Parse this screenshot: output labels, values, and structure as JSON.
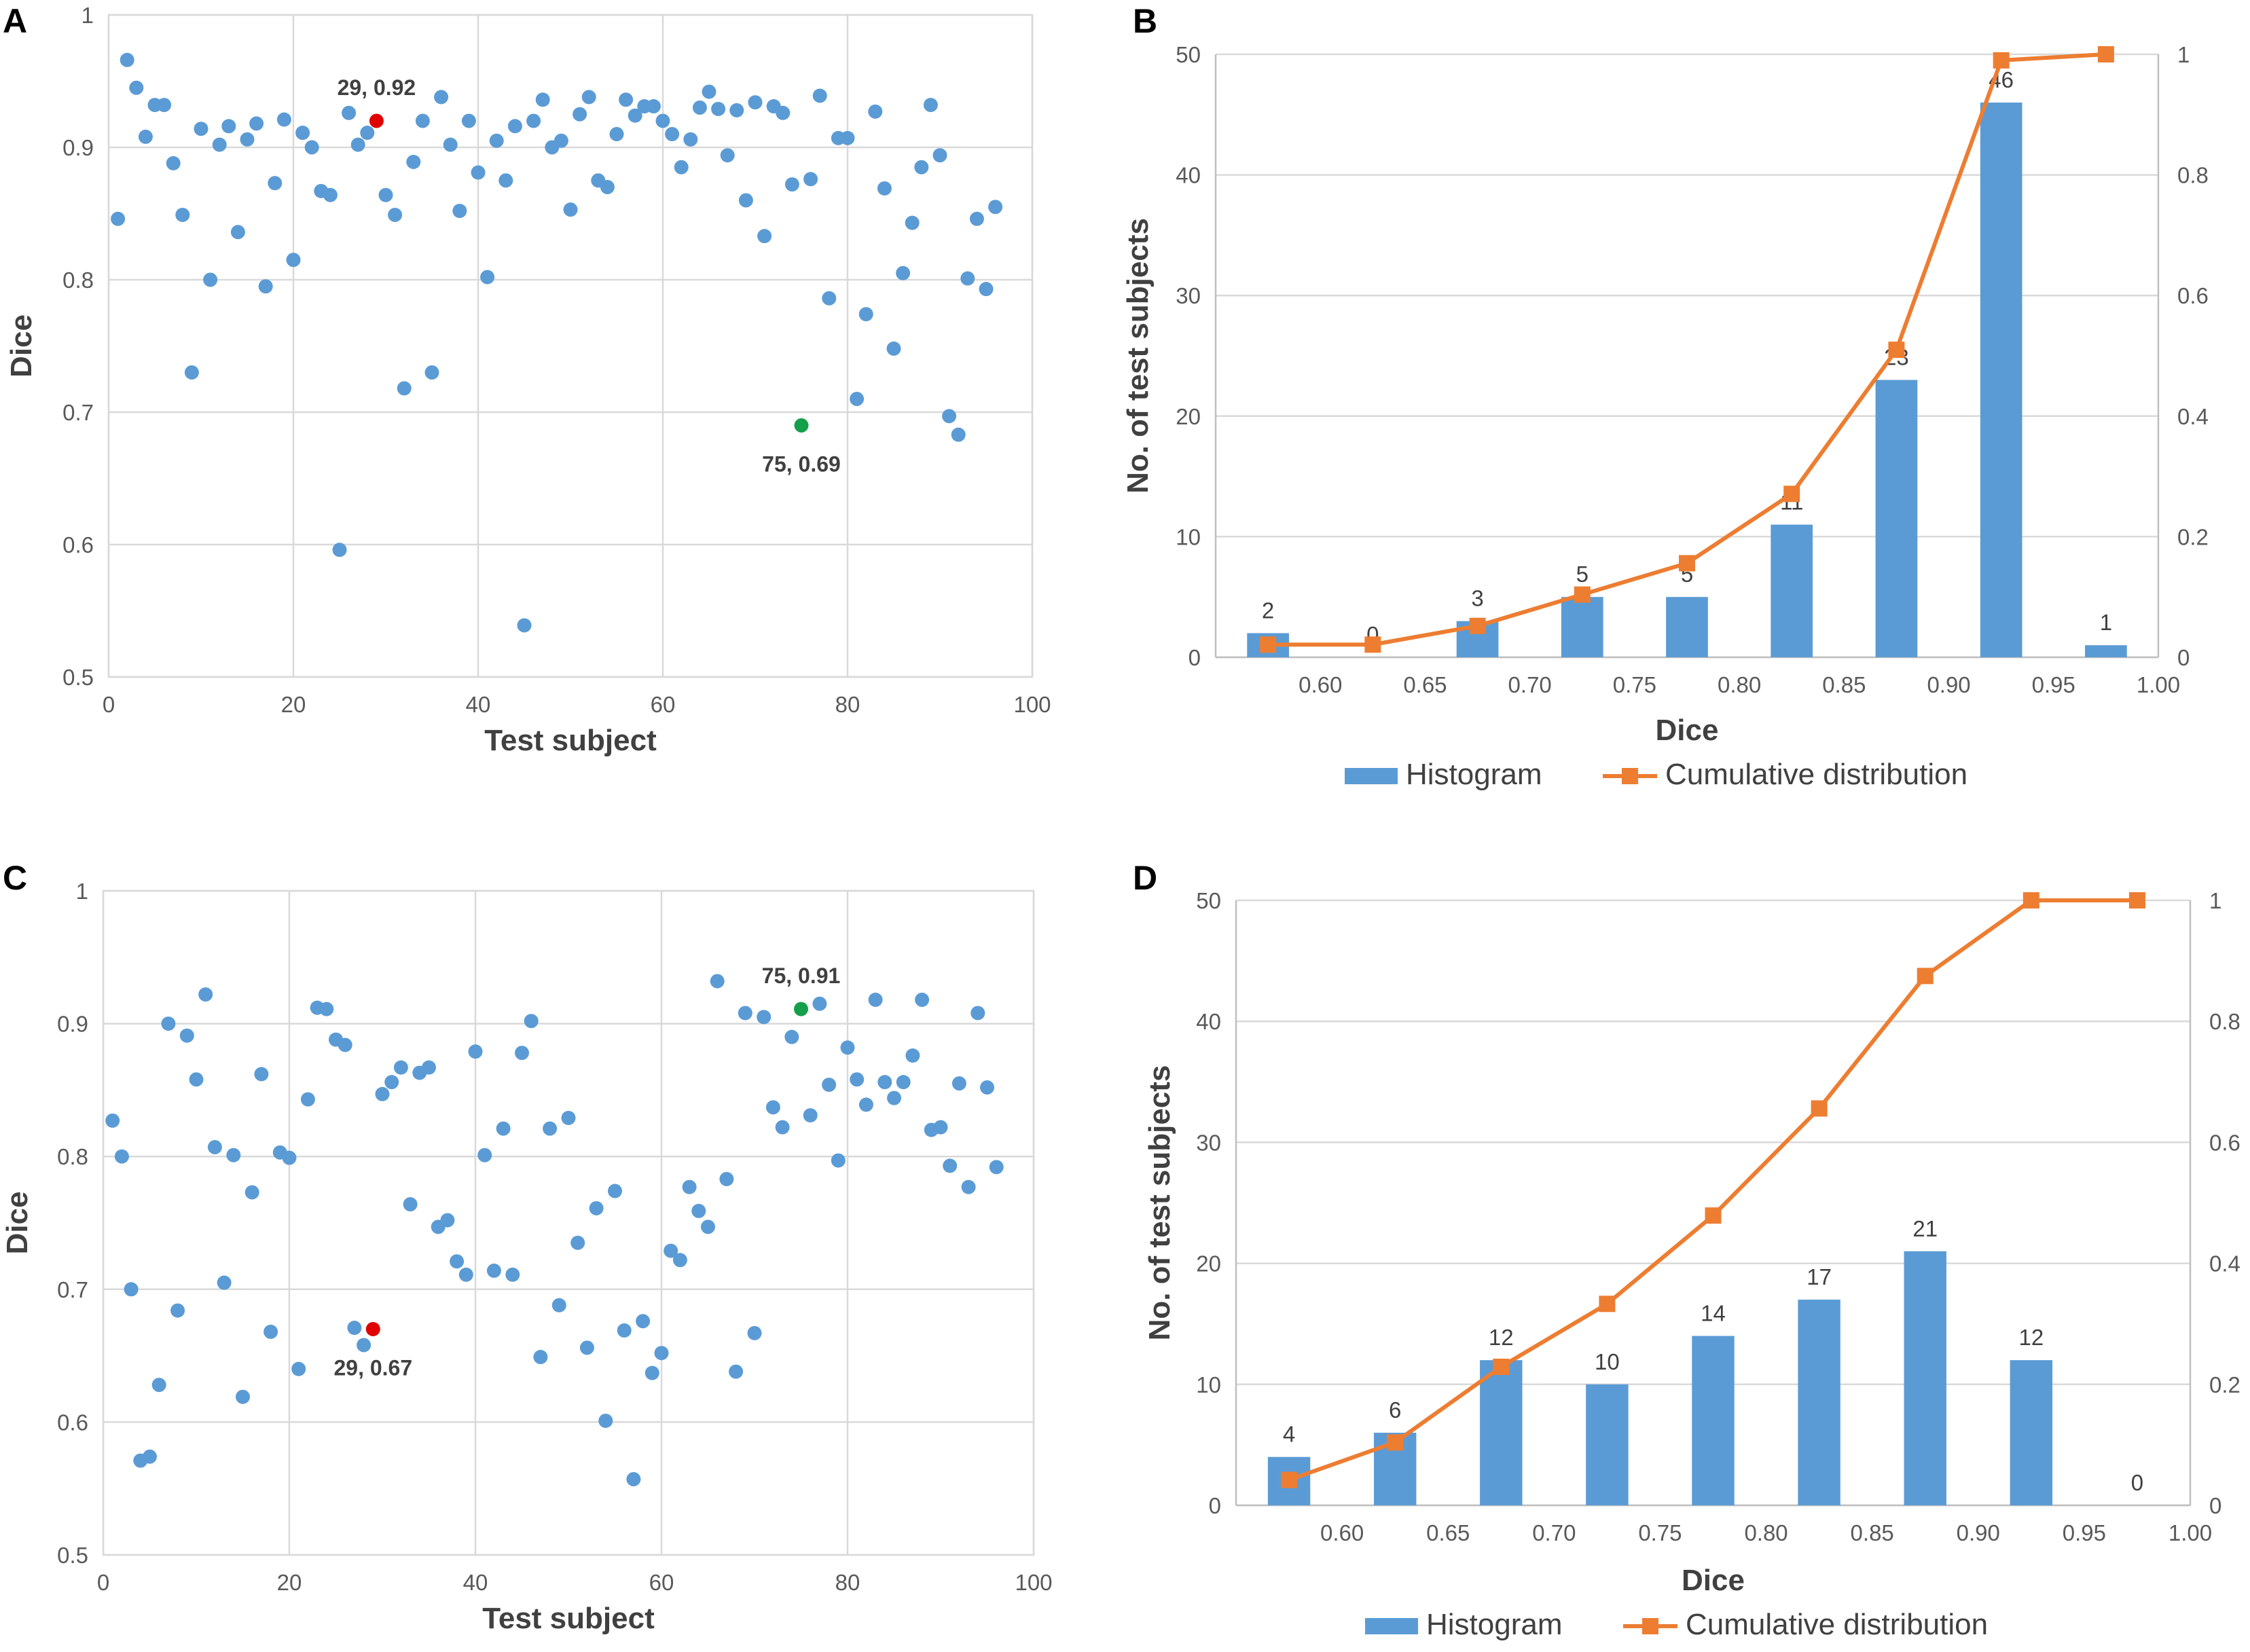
{
  "colors": {
    "point": "#5b9bd5",
    "highlight_red": "#e00000",
    "highlight_green": "#14a04a",
    "bar": "#5b9bd5",
    "line": "#ed7d31"
  },
  "chart_data": [
    {
      "id": "A",
      "letter": "A",
      "type": "scatter",
      "xlabel": "Test subject",
      "ylabel": "Dice",
      "xlim": [
        0,
        100
      ],
      "ylim": [
        0.5,
        1
      ],
      "xticks": [
        0,
        20,
        40,
        60,
        80,
        100
      ],
      "yticks": [
        0.5,
        0.6,
        0.7,
        0.8,
        0.9,
        1
      ],
      "ytick_labels": [
        "0.5",
        "0.6",
        "0.7",
        "0.8",
        "0.9",
        "1"
      ],
      "y": [
        0.846,
        0.966,
        0.945,
        0.908,
        0.932,
        0.932,
        0.888,
        0.849,
        0.73,
        0.914,
        0.8,
        0.902,
        0.916,
        0.836,
        0.906,
        0.918,
        0.795,
        0.873,
        0.921,
        0.815,
        0.911,
        0.9,
        0.867,
        0.864,
        0.596,
        0.926,
        0.902,
        0.911,
        0.92,
        0.864,
        0.849,
        0.718,
        0.889,
        0.92,
        0.73,
        0.938,
        0.902,
        0.852,
        0.92,
        0.881,
        0.802,
        0.905,
        0.875,
        0.916,
        0.539,
        0.92,
        0.936,
        0.9,
        0.905,
        0.853,
        0.925,
        0.938,
        0.875,
        0.87,
        0.91,
        0.936,
        0.924,
        0.931,
        0.931,
        0.92,
        0.91,
        0.885,
        0.906,
        0.93,
        0.942,
        0.929,
        0.894,
        0.928,
        0.86,
        0.934,
        0.833,
        0.931,
        0.926,
        0.872,
        0.69,
        0.876,
        0.939,
        0.786,
        0.907,
        0.907,
        0.71,
        0.774,
        0.927,
        0.869,
        0.748,
        0.805,
        0.843,
        0.885,
        0.932,
        0.894,
        0.697,
        0.683,
        0.801,
        0.846,
        0.793,
        0.855
      ],
      "highlights": [
        {
          "index": 29,
          "label": "29, 0.92",
          "color": "red"
        },
        {
          "index": 75,
          "label": "75, 0.69",
          "color": "green"
        }
      ]
    },
    {
      "id": "B",
      "letter": "B",
      "type": "bar",
      "xlabel": "Dice",
      "ylabel": "No. of test subjects",
      "ylim": [
        0,
        50
      ],
      "y2lim": [
        0,
        1
      ],
      "yticks": [
        0,
        10,
        20,
        30,
        40,
        50
      ],
      "y2ticks": [
        0,
        0.2,
        0.4,
        0.6,
        0.8,
        1
      ],
      "y2tick_labels": [
        "0",
        "0.2",
        "0.4",
        "0.6",
        "0.8",
        "1"
      ],
      "xlim": [
        0.55,
        1.0
      ],
      "xticks": [
        "0.60",
        "0.65",
        "0.70",
        "0.75",
        "0.80",
        "0.85",
        "0.90",
        "0.95",
        "1.00"
      ],
      "bin_centers": [
        0.575,
        0.625,
        0.675,
        0.725,
        0.775,
        0.825,
        0.875,
        0.925,
        0.975
      ],
      "series": [
        {
          "name": "Histogram",
          "type": "bar",
          "values": [
            2,
            0,
            3,
            5,
            5,
            11,
            23,
            46,
            1
          ],
          "labels": [
            "2",
            "0",
            "3",
            "5",
            "5",
            "11",
            "23",
            "46",
            "1"
          ]
        },
        {
          "name": "Cumulative distribution",
          "type": "line",
          "values": [
            0.021,
            0.021,
            0.052,
            0.104,
            0.156,
            0.271,
            0.51,
            0.99,
            1.0
          ]
        }
      ],
      "legend": [
        "Histogram",
        "Cumulative distribution"
      ]
    },
    {
      "id": "C",
      "letter": "C",
      "type": "scatter",
      "xlabel": "Test subject",
      "ylabel": "Dice",
      "xlim": [
        0,
        100
      ],
      "ylim": [
        0.5,
        1
      ],
      "xticks": [
        0,
        20,
        40,
        60,
        80,
        100
      ],
      "yticks": [
        0.5,
        0.6,
        0.7,
        0.8,
        0.9,
        1
      ],
      "ytick_labels": [
        "0.5",
        "0.6",
        "0.7",
        "0.8",
        "0.9",
        "1"
      ],
      "y": [
        0.827,
        0.8,
        0.7,
        0.571,
        0.574,
        0.628,
        0.9,
        0.684,
        0.891,
        0.858,
        0.922,
        0.807,
        0.705,
        0.801,
        0.619,
        0.773,
        0.862,
        0.668,
        0.803,
        0.799,
        0.64,
        0.843,
        0.912,
        0.911,
        0.888,
        0.884,
        0.671,
        0.658,
        0.67,
        0.847,
        0.856,
        0.867,
        0.764,
        0.863,
        0.867,
        0.747,
        0.752,
        0.721,
        0.711,
        0.879,
        0.801,
        0.714,
        0.821,
        0.711,
        0.878,
        0.902,
        0.649,
        0.821,
        0.688,
        0.829,
        0.735,
        0.656,
        0.761,
        0.601,
        0.774,
        0.669,
        0.557,
        0.676,
        0.637,
        0.652,
        0.729,
        0.722,
        0.777,
        0.759,
        0.747,
        0.932,
        0.783,
        0.638,
        0.908,
        0.667,
        0.905,
        0.837,
        0.822,
        0.89,
        0.911,
        0.831,
        0.915,
        0.854,
        0.797,
        0.882,
        0.858,
        0.839,
        0.918,
        0.856,
        0.844,
        0.856,
        0.876,
        0.918,
        0.82,
        0.822,
        0.793,
        0.855,
        0.777,
        0.908,
        0.852,
        0.792
      ],
      "highlights": [
        {
          "index": 29,
          "label": "29, 0.67",
          "color": "red"
        },
        {
          "index": 75,
          "label": "75, 0.91",
          "color": "green"
        }
      ]
    },
    {
      "id": "D",
      "letter": "D",
      "type": "bar",
      "xlabel": "Dice",
      "ylabel": "No. of test subjects",
      "ylim": [
        0,
        50
      ],
      "y2lim": [
        0,
        1
      ],
      "yticks": [
        0,
        10,
        20,
        30,
        40,
        50
      ],
      "y2ticks": [
        0,
        0.2,
        0.4,
        0.6,
        0.8,
        1
      ],
      "y2tick_labels": [
        "0",
        "0.2",
        "0.4",
        "0.6",
        "0.8",
        "1"
      ],
      "xlim": [
        0.55,
        1.0
      ],
      "xticks": [
        "0.60",
        "0.65",
        "0.70",
        "0.75",
        "0.80",
        "0.85",
        "0.90",
        "0.95",
        "1.00"
      ],
      "bin_centers": [
        0.575,
        0.625,
        0.675,
        0.725,
        0.775,
        0.825,
        0.875,
        0.925,
        0.975
      ],
      "series": [
        {
          "name": "Histogram",
          "type": "bar",
          "values": [
            4,
            6,
            12,
            10,
            14,
            17,
            21,
            12,
            0
          ],
          "labels": [
            "4",
            "6",
            "12",
            "10",
            "14",
            "17",
            "21",
            "12",
            "0"
          ]
        },
        {
          "name": "Cumulative distribution",
          "type": "line",
          "values": [
            0.042,
            0.104,
            0.229,
            0.333,
            0.479,
            0.656,
            0.875,
            1.0,
            1.0
          ]
        }
      ],
      "legend": [
        "Histogram",
        "Cumulative distribution"
      ]
    }
  ]
}
